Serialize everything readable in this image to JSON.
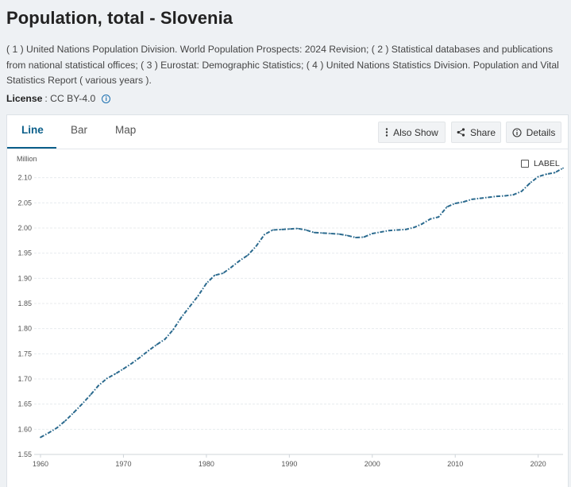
{
  "page": {
    "title": "Population, total - Slovenia",
    "source": "( 1 ) United Nations Population Division. World Population Prospects: 2024 Revision; ( 2 ) Statistical databases and publications from national statistical offices; ( 3 ) Eurostat: Demographic Statistics; ( 4 ) United Nations Statistics Division. Population and Vital Statistics Report ( various years ).",
    "license_label": "License",
    "license_value": ": CC BY-4.0"
  },
  "tabs": [
    {
      "label": "Line"
    },
    {
      "label": "Bar"
    },
    {
      "label": "Map"
    }
  ],
  "toolbar": {
    "also_show": "Also Show",
    "share": "Share",
    "details": "Details"
  },
  "chart_controls": {
    "label_toggle": "LABEL",
    "unit": "Million"
  },
  "colors": {
    "line": "#2b6a8e",
    "accent": "#0b5f8a"
  },
  "chart_data": {
    "type": "line",
    "title": "Population, total - Slovenia",
    "ylabel": "Million",
    "xlabel": "",
    "ylim": [
      1.55,
      2.12
    ],
    "xlim": [
      1960,
      2023
    ],
    "yticks": [
      "1.55",
      "1.60",
      "1.65",
      "1.70",
      "1.75",
      "1.80",
      "1.85",
      "1.90",
      "1.95",
      "2.00",
      "2.05",
      "2.10"
    ],
    "xticks": [
      "1960",
      "1970",
      "1980",
      "1990",
      "2000",
      "2010",
      "2020"
    ],
    "grid": true,
    "series": [
      {
        "name": "Slovenia",
        "x": [
          1960,
          1961,
          1962,
          1963,
          1964,
          1965,
          1966,
          1967,
          1968,
          1969,
          1970,
          1971,
          1972,
          1973,
          1974,
          1975,
          1976,
          1977,
          1978,
          1979,
          1980,
          1981,
          1982,
          1983,
          1984,
          1985,
          1986,
          1987,
          1988,
          1989,
          1990,
          1991,
          1992,
          1993,
          1994,
          1995,
          1996,
          1997,
          1998,
          1999,
          2000,
          2001,
          2002,
          2003,
          2004,
          2005,
          2006,
          2007,
          2008,
          2009,
          2010,
          2011,
          2012,
          2013,
          2014,
          2015,
          2016,
          2017,
          2018,
          2019,
          2020,
          2021,
          2022,
          2023
        ],
        "values": [
          1.584,
          1.593,
          1.603,
          1.617,
          1.633,
          1.65,
          1.668,
          1.687,
          1.701,
          1.71,
          1.72,
          1.731,
          1.743,
          1.756,
          1.768,
          1.779,
          1.798,
          1.823,
          1.844,
          1.865,
          1.89,
          1.906,
          1.91,
          1.922,
          1.935,
          1.946,
          1.964,
          1.987,
          1.996,
          1.997,
          1.998,
          1.999,
          1.996,
          1.991,
          1.99,
          1.989,
          1.988,
          1.985,
          1.981,
          1.982,
          1.989,
          1.992,
          1.995,
          1.996,
          1.997,
          2.001,
          2.008,
          2.018,
          2.022,
          2.042,
          2.049,
          2.052,
          2.057,
          2.059,
          2.061,
          2.063,
          2.064,
          2.066,
          2.073,
          2.089,
          2.102,
          2.107,
          2.11,
          2.119
        ]
      }
    ]
  }
}
